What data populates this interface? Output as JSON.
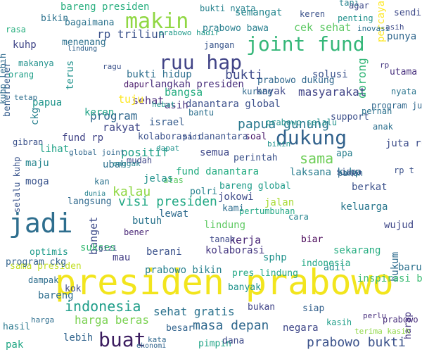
{
  "colors": {
    "background": "#ffffff",
    "palette_name": "viridis"
  },
  "words": [
    {
      "text": "presiden prabowo",
      "color": "#f2e51d"
    },
    {
      "text": "jadi",
      "color": "#2e6e8e"
    },
    {
      "text": "buat",
      "color": "#3b1c5f"
    },
    {
      "text": "dukung",
      "color": "#33638d"
    },
    {
      "text": "makin",
      "color": "#90d743"
    },
    {
      "text": "ruu hap",
      "color": "#414487"
    },
    {
      "text": "joint fund",
      "color": "#35b779"
    },
    {
      "text": "indonesia",
      "color": "#1f9e89"
    },
    {
      "text": "bukti",
      "color": "#3e4989"
    },
    {
      "text": "papua gunung",
      "color": "#2a788e"
    },
    {
      "text": "prabowo bukti",
      "color": "#3b528b"
    },
    {
      "text": "masa depan",
      "color": "#30698e"
    },
    {
      "text": "visi presiden",
      "color": "#22a884"
    },
    {
      "text": "harga beras",
      "color": "#7ad151"
    },
    {
      "text": "sama",
      "color": "#6ece58"
    },
    {
      "text": "kalau",
      "color": "#8fd744"
    },
    {
      "text": "langkah presiden",
      "color": "#472d7b"
    },
    {
      "text": "program",
      "color": "#31688e"
    },
    {
      "text": "dunia",
      "color": "#26828e"
    },
    {
      "text": "bantu",
      "color": "#2d708e"
    },
    {
      "text": "rakyat",
      "color": "#3f4788"
    },
    {
      "text": "positif",
      "color": "#1fa088"
    },
    {
      "text": "danantara global",
      "color": "#3c508b"
    },
    {
      "text": "laksana kuhp",
      "color": "#287c8e"
    },
    {
      "text": "fund danantara",
      "color": "#25ac82"
    },
    {
      "text": "sehat gratis",
      "color": "#2c728e"
    },
    {
      "text": "kerja",
      "color": "#482576"
    },
    {
      "text": "kolaborasi",
      "color": "#453781"
    },
    {
      "text": "prabowo bikin",
      "color": "#27808e"
    },
    {
      "text": "berani",
      "color": "#3b528b"
    },
    {
      "text": "lindung",
      "color": "#5ec962"
    },
    {
      "text": "bareng global",
      "color": "#1e9c89"
    },
    {
      "text": "dorong",
      "color": "#35b779"
    },
    {
      "text": "terus",
      "color": "#20928c"
    },
    {
      "text": "bareng presiden",
      "color": "#29af7f"
    },
    {
      "text": "masyarakat",
      "color": "#414487"
    },
    {
      "text": "hukum",
      "color": "#2f6c8e"
    },
    {
      "text": "prabowo dukung",
      "color": "#31688e"
    },
    {
      "text": "cek sehat",
      "color": "#5cc863"
    },
    {
      "text": "semangat",
      "color": "#24868e"
    },
    {
      "text": "kuhp",
      "color": "#404688"
    },
    {
      "text": "bangsa",
      "color": "#26ad81"
    },
    {
      "text": "solusi",
      "color": "#3b528b"
    },
    {
      "text": "sekarang",
      "color": "#27ad81"
    },
    {
      "text": "keluarga",
      "color": "#2a778e"
    },
    {
      "text": "wujud",
      "color": "#3f4788"
    },
    {
      "text": "banget",
      "color": "#3e4c8a"
    },
    {
      "text": "sehat",
      "color": "#472a7a"
    },
    {
      "text": "keren",
      "color": "#20a386"
    },
    {
      "text": "perintah",
      "color": "#3b528b"
    },
    {
      "text": "rp triliun",
      "color": "#3b528b"
    },
    {
      "text": "bagaimana",
      "color": "#2c738e"
    },
    {
      "text": "percaya",
      "color": "#fde725"
    },
    {
      "text": "punya",
      "color": "#31688e"
    },
    {
      "text": "bikin",
      "color": "#2c728e"
    },
    {
      "text": "sendiri",
      "color": "#3e4a89"
    },
    {
      "text": "prabowo bawa",
      "color": "#277f8e"
    },
    {
      "text": "prabowo hadir",
      "color": "#1f9a8a"
    },
    {
      "text": "jangan",
      "color": "#39568c"
    },
    {
      "text": "bukti hidup",
      "color": "#2e6f8e"
    },
    {
      "text": "kayak",
      "color": "#3e4989"
    },
    {
      "text": "utama",
      "color": "#472f7d"
    },
    {
      "text": "nyata",
      "color": "#2b758e"
    },
    {
      "text": "support",
      "color": "#3c4f8a"
    },
    {
      "text": "israel",
      "color": "#365c8d"
    },
    {
      "text": "soal",
      "color": "#481769"
    },
    {
      "text": "semua",
      "color": "#3f4889"
    },
    {
      "text": "maju",
      "color": "#25858e"
    },
    {
      "text": "ubah",
      "color": "#2d718e"
    },
    {
      "text": "lihat",
      "color": "#1fa287"
    },
    {
      "text": "fund rp",
      "color": "#414487"
    },
    {
      "text": "moga",
      "color": "#3a548c"
    },
    {
      "text": "juta rumah",
      "color": "#3d4d8a"
    },
    {
      "text": "apa",
      "color": "#277e8e"
    },
    {
      "text": "berkat",
      "color": "#3b518b"
    },
    {
      "text": "jokowi",
      "color": "#3e4a89"
    },
    {
      "text": "jalan",
      "color": "#a8db34"
    },
    {
      "text": "butuh",
      "color": "#2b748e"
    },
    {
      "text": "kami",
      "color": "#2e6d8e"
    },
    {
      "text": "lewat",
      "color": "#2f6b8e"
    },
    {
      "text": "biar",
      "color": "#440154"
    },
    {
      "text": "baru",
      "color": "#2c718e"
    },
    {
      "text": "mau",
      "color": "#433e85"
    },
    {
      "text": "sukses",
      "color": "#3bbb75"
    },
    {
      "text": "bukan",
      "color": "#404588"
    },
    {
      "text": "negara",
      "color": "#3f4788"
    },
    {
      "text": "lebih",
      "color": "#32658e"
    },
    {
      "text": "besar",
      "color": "#32648e"
    },
    {
      "text": "pimpin",
      "color": "#20a486"
    },
    {
      "text": "dana",
      "color": "#3e4a89"
    },
    {
      "text": "siap",
      "color": "#34618d"
    },
    {
      "text": "hasil",
      "color": "#2a788e"
    },
    {
      "text": "pak",
      "color": "#22a785"
    },
    {
      "text": "bareng",
      "color": "#2e6e8e"
    },
    {
      "text": "sama presiden",
      "color": "#c2df23"
    },
    {
      "text": "program ckg",
      "color": "#33638d"
    },
    {
      "text": "harap",
      "color": "#453781"
    },
    {
      "text": "inspirasi buat",
      "color": "#3dbc74"
    },
    {
      "text": "banyak",
      "color": "#20938c"
    },
    {
      "text": "pres lindung",
      "color": "#22a785"
    },
    {
      "text": "optimis",
      "color": "#1e9b8a"
    },
    {
      "text": "sphp",
      "color": "#20928c"
    },
    {
      "text": "adil",
      "color": "#228c8d"
    },
    {
      "text": "indonesia",
      "color": "#22a785"
    },
    {
      "text": "kok",
      "color": "#3e4c8a"
    },
    {
      "text": "papua",
      "color": "#1f958b"
    },
    {
      "text": "ckg",
      "color": "#27808e"
    },
    {
      "text": "menenang",
      "color": "#2d708e"
    },
    {
      "text": "benerbener",
      "color": "#365d8d"
    },
    {
      "text": "kuhp lebih",
      "color": "#2f6b8e"
    },
    {
      "text": "makanya",
      "color": "#21918c"
    },
    {
      "text": "orang",
      "color": "#1f9f88"
    },
    {
      "text": "tuju",
      "color": "#fde725"
    },
    {
      "text": "asih",
      "color": "#46317e"
    },
    {
      "text": "dapur",
      "color": "#48186a"
    },
    {
      "text": "gibran",
      "color": "#3b528b"
    },
    {
      "text": "langsung",
      "color": "#306a8e"
    },
    {
      "text": "selalu kuhp",
      "color": "#3a548c"
    },
    {
      "text": "prabowo selalu",
      "color": "#21918c"
    },
    {
      "text": "kolaborasi danantara",
      "color": "#3b528b"
    },
    {
      "text": "atas",
      "color": "#5ec962"
    },
    {
      "text": "siapa",
      "color": "#3d4e8a"
    },
    {
      "text": "kurang",
      "color": "#30698e"
    },
    {
      "text": "pernah",
      "color": "#2c728e"
    },
    {
      "text": "program juta",
      "color": "#31688e"
    },
    {
      "text": "anak",
      "color": "#2d708e"
    },
    {
      "text": "rp t",
      "color": "#3b528b"
    },
    {
      "text": "jelas",
      "color": "#21918c"
    },
    {
      "text": "kan",
      "color": "#2c728e"
    },
    {
      "text": "polri",
      "color": "#26828e"
    },
    {
      "text": "cara",
      "color": "#25848e"
    },
    {
      "text": "kasih",
      "color": "#1f9e89"
    },
    {
      "text": "tanah",
      "color": "#3e4989"
    },
    {
      "text": "prabowo paham",
      "color": "#472d7b"
    },
    {
      "text": "terima kasih",
      "color": "#8fd744"
    },
    {
      "text": "ekonomi",
      "color": "#32658e"
    },
    {
      "text": "gizi",
      "color": "#3e4989"
    },
    {
      "text": "tetap",
      "color": "#2e6e8e"
    },
    {
      "text": "tani",
      "color": "#26828e"
    },
    {
      "text": "ragu",
      "color": "#3b528b"
    },
    {
      "text": "penting",
      "color": "#21918c"
    },
    {
      "text": "asih",
      "color": "#3e4a89"
    },
    {
      "text": "hebat",
      "color": "#1f968b"
    },
    {
      "text": "inovasi",
      "color": "#2d708e"
    },
    {
      "text": "pertumbuhan",
      "color": "#22a884"
    },
    {
      "text": "lindung",
      "color": "#33638d"
    },
    {
      "text": "mudah",
      "color": "#3f4788"
    },
    {
      "text": "harga",
      "color": "#2e6e8e"
    },
    {
      "text": "enggak",
      "color": "#26828e"
    },
    {
      "text": "bikin",
      "color": "#20928c"
    },
    {
      "text": "agar",
      "color": "#3e4989"
    },
    {
      "text": "panen",
      "color": "#31688e"
    },
    {
      "text": "keren",
      "color": "#3b528b"
    },
    {
      "text": "bener",
      "color": "#482576"
    },
    {
      "text": "global joint",
      "color": "#31688e"
    },
    {
      "text": "rasa",
      "color": "#29af7f"
    },
    {
      "text": "bukti nyata",
      "color": "#26828e"
    },
    {
      "text": "perlu",
      "color": "#472d7b"
    },
    {
      "text": "dampak",
      "color": "#2e6e8e"
    },
    {
      "text": "kata",
      "color": "#31688e"
    },
    {
      "text": "dapat",
      "color": "#20928c"
    },
    {
      "text": "padi",
      "color": "#3b528b"
    },
    {
      "text": "rp",
      "color": "#453781"
    }
  ]
}
